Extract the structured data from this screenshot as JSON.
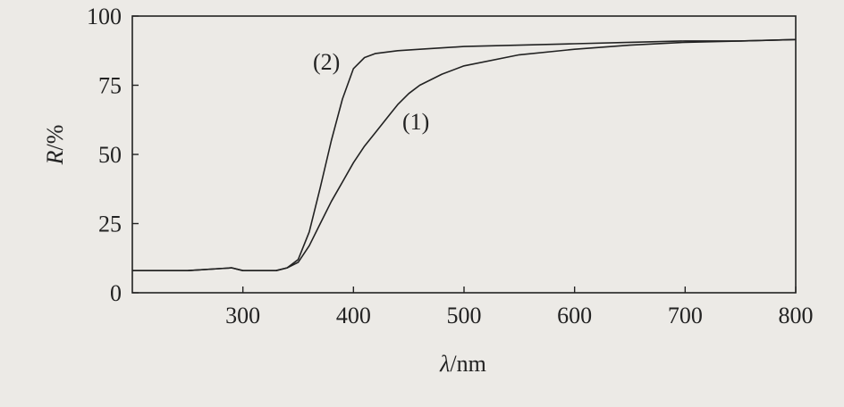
{
  "chart_data": {
    "type": "line",
    "title": "",
    "xlabel_symbol": "λ",
    "xlabel_unit": "/nm",
    "ylabel_symbol": "R",
    "ylabel_unit": "/%",
    "xlim": [
      200,
      800
    ],
    "ylim": [
      0,
      100
    ],
    "x_ticks": [
      300,
      400,
      500,
      600,
      700,
      800
    ],
    "y_ticks": [
      0,
      25,
      50,
      75,
      100
    ],
    "grid": false,
    "legend": "none",
    "series": [
      {
        "name": "(1)",
        "x": [
          200,
          250,
          290,
          300,
          330,
          340,
          350,
          360,
          370,
          380,
          390,
          400,
          410,
          420,
          430,
          440,
          450,
          460,
          480,
          500,
          550,
          600,
          650,
          700,
          750,
          800
        ],
        "y": [
          8,
          8,
          9,
          8,
          8,
          9,
          11,
          17,
          25,
          33,
          40,
          47,
          53,
          58,
          63,
          68,
          72,
          75,
          79,
          82,
          86,
          88,
          89.5,
          90.5,
          91,
          91.5
        ]
      },
      {
        "name": "(2)",
        "x": [
          200,
          250,
          290,
          300,
          330,
          340,
          350,
          360,
          370,
          380,
          390,
          400,
          410,
          420,
          440,
          460,
          500,
          550,
          600,
          650,
          700,
          750,
          800
        ],
        "y": [
          8,
          8,
          9,
          8,
          8,
          9,
          12,
          22,
          38,
          55,
          70,
          81,
          85,
          86.5,
          87.5,
          88,
          89,
          89.5,
          90,
          90.5,
          91,
          91,
          91.5
        ]
      }
    ]
  },
  "colors": {
    "background": "#eceae6",
    "line": "#222222"
  }
}
